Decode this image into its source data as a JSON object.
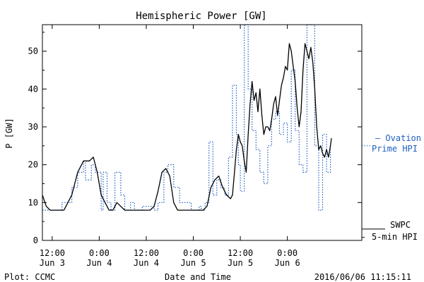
{
  "chart_data": {
    "type": "line",
    "title": "Hemispheric Power [GW]",
    "ylabel": "P [GW]",
    "xlabel": "Date and Time",
    "ylim": [
      0,
      57
    ],
    "yticks": [
      0,
      10,
      20,
      30,
      40,
      50
    ],
    "xlim": [
      "2016-06-03T09:30",
      "2016-06-06T19:00"
    ],
    "xticks": [
      {
        "t": "2016-06-03T12:00",
        "time": "12:00",
        "date": "Jun 3"
      },
      {
        "t": "2016-06-04T00:00",
        "time": "0:00",
        "date": "Jun 4"
      },
      {
        "t": "2016-06-04T12:00",
        "time": "12:00",
        "date": "Jun 4"
      },
      {
        "t": "2016-06-05T00:00",
        "time": "0:00",
        "date": "Jun 5"
      },
      {
        "t": "2016-06-05T12:00",
        "time": "12:00",
        "date": "Jun 5"
      },
      {
        "t": "2016-06-06T00:00",
        "time": "0:00",
        "date": "Jun 6"
      }
    ],
    "footer_left": "Plot: CCMC",
    "footer_right": "2016/06/06 11:15:11",
    "series": [
      {
        "name": "SWPC 5-min HPI",
        "legend_lines": [
          "SWPC",
          "5-min HPI"
        ],
        "color": "#000000",
        "style": "solid",
        "x": [
          "2016-06-03T09:30",
          "2016-06-03T10:30",
          "2016-06-03T11:30",
          "2016-06-03T12:30",
          "2016-06-03T13:30",
          "2016-06-03T15:00",
          "2016-06-03T17:00",
          "2016-06-03T18:30",
          "2016-06-03T20:00",
          "2016-06-03T21:30",
          "2016-06-03T22:30",
          "2016-06-03T23:30",
          "2016-06-04T00:30",
          "2016-06-04T01:30",
          "2016-06-04T02:30",
          "2016-06-04T03:30",
          "2016-06-04T04:30",
          "2016-06-04T05:30",
          "2016-06-04T06:30",
          "2016-06-04T08:00",
          "2016-06-04T10:00",
          "2016-06-04T12:00",
          "2016-06-04T13:00",
          "2016-06-04T14:00",
          "2016-06-04T15:00",
          "2016-06-04T16:00",
          "2016-06-04T17:00",
          "2016-06-04T18:00",
          "2016-06-04T19:00",
          "2016-06-04T20:00",
          "2016-06-04T21:00",
          "2016-06-04T23:00",
          "2016-06-05T01:00",
          "2016-06-05T02:30",
          "2016-06-05T03:30",
          "2016-06-05T04:30",
          "2016-06-05T05:30",
          "2016-06-05T06:30",
          "2016-06-05T07:30",
          "2016-06-05T08:30",
          "2016-06-05T09:30",
          "2016-06-05T10:00",
          "2016-06-05T10:30",
          "2016-06-05T11:00",
          "2016-06-05T11:30",
          "2016-06-05T12:00",
          "2016-06-05T12:30",
          "2016-06-05T13:00",
          "2016-06-05T13:30",
          "2016-06-05T14:00",
          "2016-06-05T14:30",
          "2016-06-05T15:00",
          "2016-06-05T15:30",
          "2016-06-05T16:00",
          "2016-06-05T16:30",
          "2016-06-05T17:00",
          "2016-06-05T17:30",
          "2016-06-05T18:00",
          "2016-06-05T18:30",
          "2016-06-05T19:00",
          "2016-06-05T19:30",
          "2016-06-05T20:00",
          "2016-06-05T20:30",
          "2016-06-05T21:00",
          "2016-06-05T21:30",
          "2016-06-05T22:00",
          "2016-06-05T22:30",
          "2016-06-05T23:00",
          "2016-06-05T23:30",
          "2016-06-06T00:00",
          "2016-06-06T00:30",
          "2016-06-06T01:00",
          "2016-06-06T01:30",
          "2016-06-06T02:00",
          "2016-06-06T02:30",
          "2016-06-06T03:00",
          "2016-06-06T03:30",
          "2016-06-06T04:00",
          "2016-06-06T04:30",
          "2016-06-06T05:00",
          "2016-06-06T05:30",
          "2016-06-06T06:00",
          "2016-06-06T06:30",
          "2016-06-06T07:00",
          "2016-06-06T07:30",
          "2016-06-06T08:00",
          "2016-06-06T08:30",
          "2016-06-06T09:00",
          "2016-06-06T09:30",
          "2016-06-06T10:00",
          "2016-06-06T10:30",
          "2016-06-06T11:00",
          "2016-06-06T11:15"
        ],
        "y": [
          12,
          9,
          8,
          8,
          8,
          8,
          12,
          18,
          21,
          21,
          22,
          18,
          12,
          10,
          8,
          8,
          10,
          9,
          8,
          8,
          8,
          8,
          8,
          9,
          13,
          18,
          19,
          17,
          10,
          8,
          8,
          8,
          8,
          8,
          9,
          14,
          16,
          17,
          14,
          12,
          11,
          12,
          18,
          24,
          28,
          26,
          25,
          21,
          18,
          28,
          36,
          42,
          37,
          39,
          34,
          40,
          33,
          28,
          30,
          30,
          29,
          32,
          36,
          38,
          33,
          37,
          41,
          43,
          46,
          45,
          52,
          50,
          46,
          42,
          35,
          30,
          34,
          45,
          52,
          50,
          48,
          51,
          47,
          40,
          30,
          24,
          25,
          23,
          22,
          24,
          22,
          25,
          27
        ]
      },
      {
        "name": "Ovation Prime HPI",
        "legend_lines": [
          "— Ovation",
          "Prime HPI"
        ],
        "color": "#1f5fbf",
        "style": "dotted",
        "x": [
          "2016-06-03T09:30",
          "2016-06-03T14:30",
          "2016-06-03T17:00",
          "2016-06-03T18:30",
          "2016-06-03T20:00",
          "2016-06-03T20:30",
          "2016-06-03T22:00",
          "2016-06-03T23:00",
          "2016-06-04T00:30",
          "2016-06-04T01:00",
          "2016-06-04T02:00",
          "2016-06-04T03:00",
          "2016-06-04T04:00",
          "2016-06-04T05:30",
          "2016-06-04T06:30",
          "2016-06-04T08:00",
          "2016-06-04T09:00",
          "2016-06-04T11:00",
          "2016-06-04T14:00",
          "2016-06-04T15:00",
          "2016-06-04T16:30",
          "2016-06-04T17:30",
          "2016-06-04T19:00",
          "2016-06-04T20:30",
          "2016-06-04T23:30",
          "2016-06-05T01:30",
          "2016-06-05T02:00",
          "2016-06-05T03:00",
          "2016-06-05T04:00",
          "2016-06-05T05:00",
          "2016-06-05T06:00",
          "2016-06-05T07:00",
          "2016-06-05T08:00",
          "2016-06-05T09:00",
          "2016-06-05T10:00",
          "2016-06-05T11:00",
          "2016-06-05T11:30",
          "2016-06-05T12:00",
          "2016-06-05T13:00",
          "2016-06-05T14:00",
          "2016-06-05T15:00",
          "2016-06-05T16:00",
          "2016-06-05T17:00",
          "2016-06-05T18:00",
          "2016-06-05T19:00",
          "2016-06-05T20:00",
          "2016-06-05T21:00",
          "2016-06-05T22:00",
          "2016-06-05T23:00",
          "2016-06-06T00:00",
          "2016-06-06T01:00",
          "2016-06-06T02:00",
          "2016-06-06T03:00",
          "2016-06-06T04:00",
          "2016-06-06T05:00",
          "2016-06-06T06:00",
          "2016-06-06T07:00",
          "2016-06-06T08:00",
          "2016-06-06T09:00",
          "2016-06-06T10:00",
          "2016-06-06T11:00"
        ],
        "y": [
          8,
          10,
          14,
          18,
          21,
          16,
          20,
          18,
          8,
          18,
          10,
          8,
          18,
          12,
          8,
          10,
          8,
          9,
          8,
          10,
          18,
          20,
          14,
          10,
          8,
          9,
          8,
          10,
          26,
          12,
          16,
          14,
          12,
          22,
          41,
          28,
          20,
          13,
          57,
          40,
          29,
          24,
          18,
          15,
          25,
          32,
          34,
          28,
          31,
          26,
          45,
          29,
          20,
          18,
          57,
          57,
          25,
          8,
          28,
          18,
          25
        ]
      }
    ]
  }
}
